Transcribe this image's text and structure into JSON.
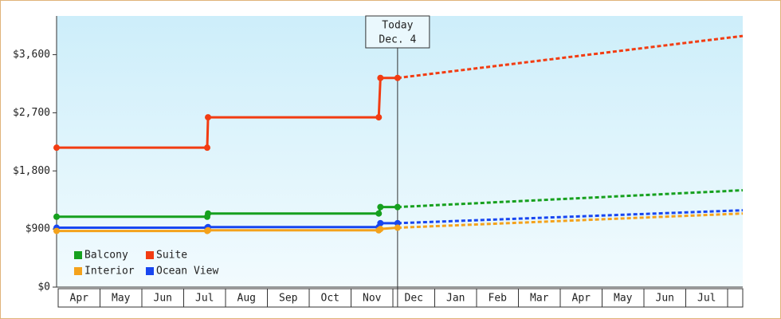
{
  "chart_data": {
    "type": "line",
    "today": {
      "x": 8.15,
      "label": "Today",
      "date": "Dec. 4"
    },
    "categories": [
      "Apr",
      "May",
      "Jun",
      "Jul",
      "Aug",
      "Sep",
      "Oct",
      "Nov",
      "Dec",
      "Jan",
      "Feb",
      "Mar",
      "Apr",
      "May",
      "Jun",
      "Jul"
    ],
    "xlim": [
      0,
      16.4
    ],
    "ylim": [
      0,
      4200
    ],
    "yticks": [
      {
        "value": 0,
        "label": "$0"
      },
      {
        "value": 900,
        "label": "$900"
      },
      {
        "value": 1800,
        "label": "$1,800"
      },
      {
        "value": 2700,
        "label": "$2,700"
      },
      {
        "value": 3600,
        "label": "$3,600"
      }
    ],
    "legend": "lower left",
    "series": [
      {
        "name": "Balcony",
        "color": "#16a01e",
        "x": [
          0,
          3.6,
          3.62,
          7.7,
          7.74,
          8.15
        ],
        "values": [
          1090,
          1090,
          1140,
          1140,
          1240,
          1240
        ],
        "forecast": {
          "x": [
            8.15,
            16.4
          ],
          "values": [
            1240,
            1500
          ]
        }
      },
      {
        "name": "Suite",
        "color": "#f23c12",
        "x": [
          0,
          3.6,
          3.62,
          7.7,
          7.74,
          8.15
        ],
        "values": [
          2160,
          2160,
          2630,
          2630,
          3240,
          3240
        ],
        "forecast": {
          "x": [
            8.15,
            16.4
          ],
          "values": [
            3240,
            3890
          ]
        }
      },
      {
        "name": "Interior",
        "color": "#f4a21c",
        "x": [
          0,
          3.6,
          3.62,
          7.7,
          7.74,
          8.15
        ],
        "values": [
          870,
          870,
          880,
          880,
          900,
          920
        ],
        "forecast": {
          "x": [
            8.15,
            16.4
          ],
          "values": [
            920,
            1140
          ]
        }
      },
      {
        "name": "Ocean View",
        "color": "#1846f0",
        "x": [
          0,
          3.6,
          3.62,
          7.7,
          7.74,
          8.15
        ],
        "values": [
          920,
          920,
          930,
          930,
          990,
          990
        ],
        "forecast": {
          "x": [
            8.15,
            16.4
          ],
          "values": [
            990,
            1190
          ]
        }
      }
    ]
  }
}
